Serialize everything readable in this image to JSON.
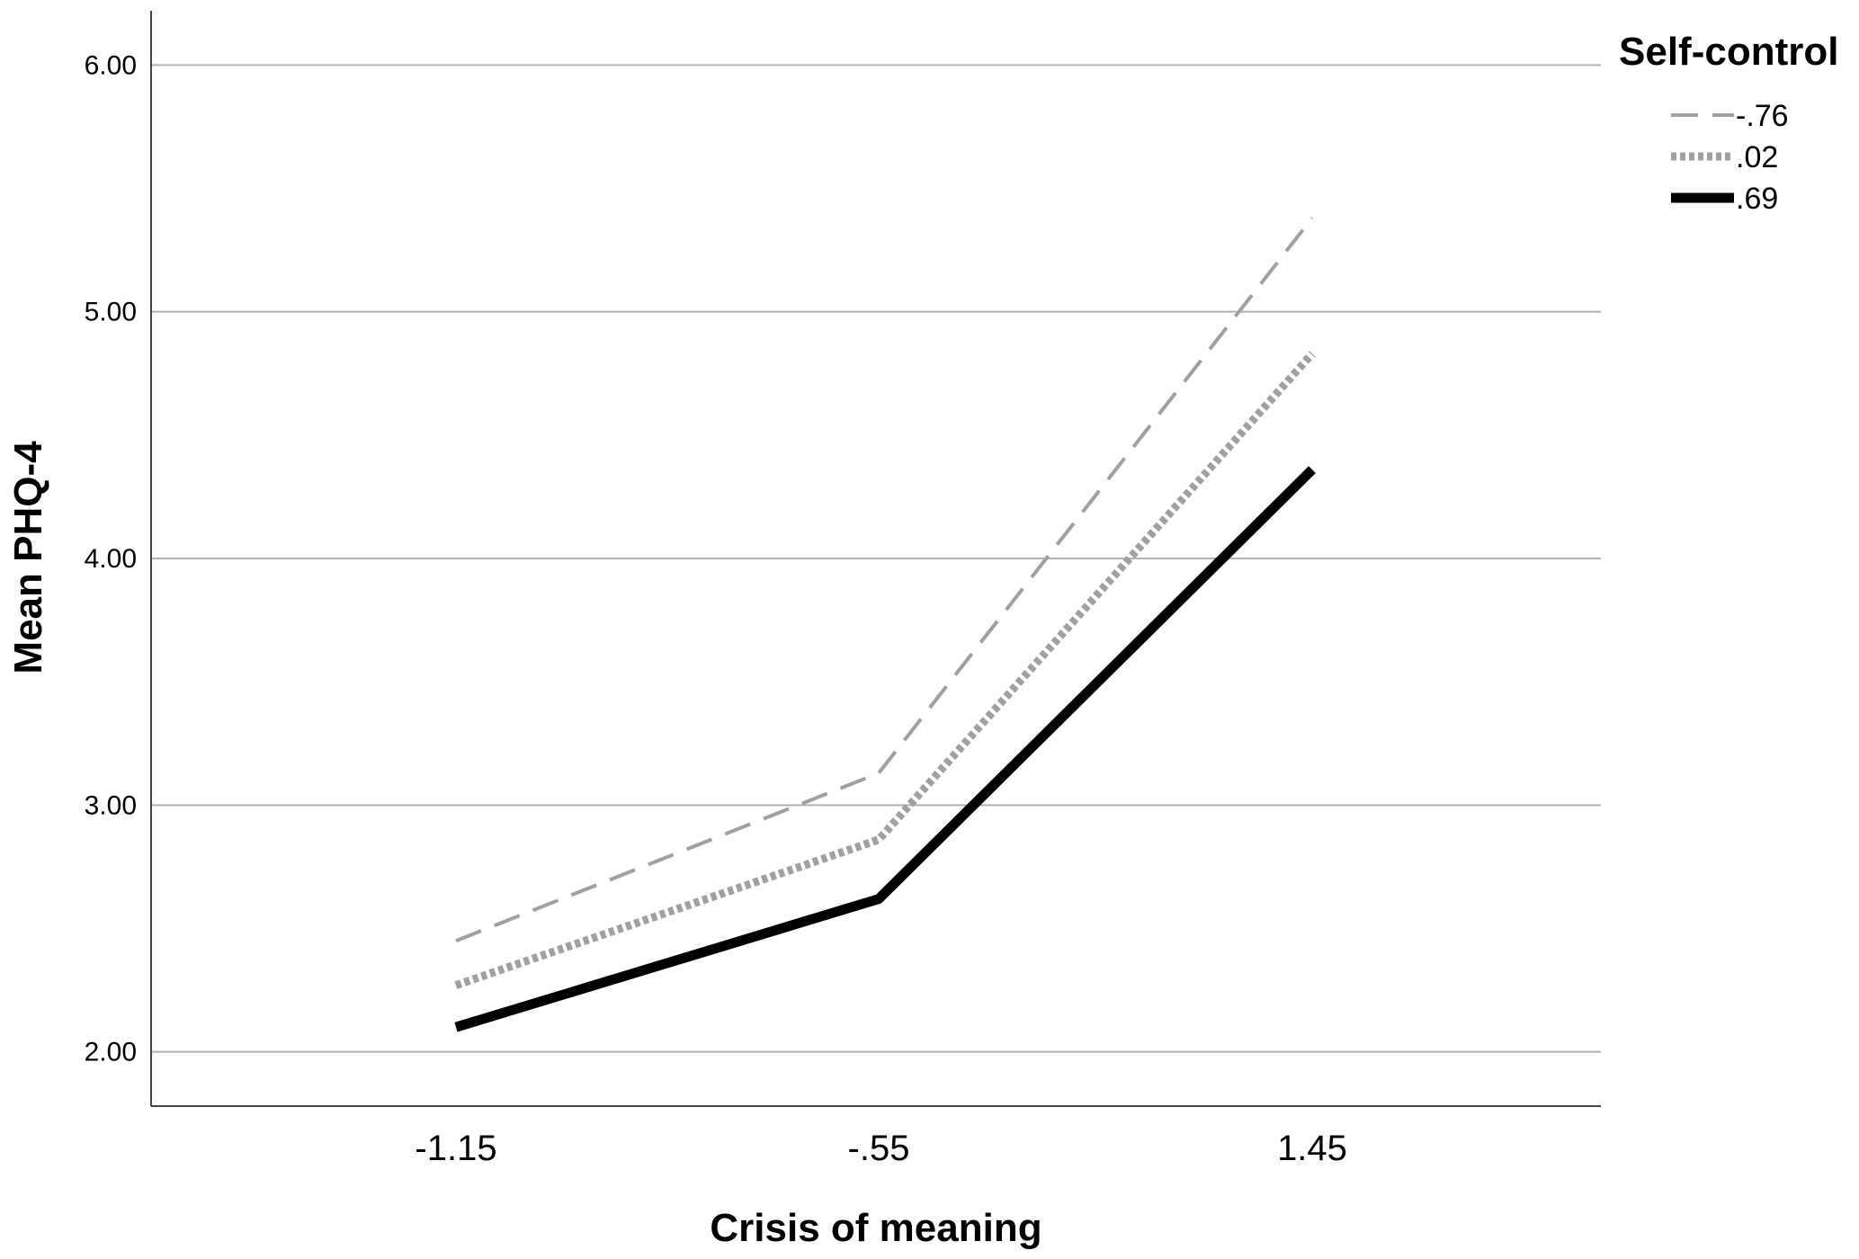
{
  "chart_data": {
    "type": "line",
    "title": "",
    "xlabel": "Crisis of meaning",
    "ylabel": "Mean PHQ-4",
    "categories": [
      "-1.15",
      "-.55",
      "1.45"
    ],
    "ylim": [
      1.78,
      6.22
    ],
    "yticks": [
      "2.00",
      "3.00",
      "4.00",
      "5.00",
      "6.00"
    ],
    "grid": "horizontal",
    "legend_title": "Self-control",
    "legend_position": "top-right",
    "series": [
      {
        "name": "-.76",
        "values": [
          2.45,
          3.13,
          5.38
        ],
        "color": "#a0a0a0",
        "style": "dashed"
      },
      {
        "name": ".02",
        "values": [
          2.27,
          2.86,
          4.83
        ],
        "color": "#a0a0a0",
        "style": "dotted"
      },
      {
        "name": ".69",
        "values": [
          2.1,
          2.62,
          4.36
        ],
        "color": "#000000",
        "style": "solid"
      }
    ]
  }
}
